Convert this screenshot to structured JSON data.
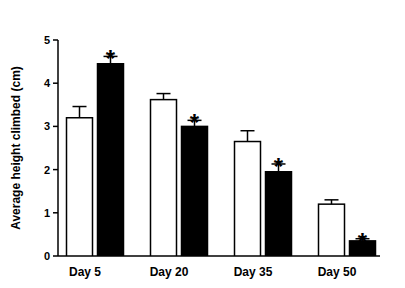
{
  "chart_data": {
    "type": "bar",
    "y_label": "Average height climbed (cm)",
    "categories": [
      "Day 5",
      "Day 20",
      "Day 35",
      "Day 50"
    ],
    "series": [
      {
        "color": "#ffffff",
        "values": [
          3.2,
          3.62,
          2.65,
          1.2
        ],
        "errors": [
          0.26,
          0.14,
          0.25,
          0.1
        ]
      },
      {
        "color": "#000000",
        "values": [
          4.45,
          3.0,
          1.95,
          0.35
        ],
        "errors": [
          0.17,
          0.14,
          0.18,
          0.05
        ],
        "annotations": [
          "*",
          "*",
          "*",
          "*"
        ]
      }
    ],
    "ylim": [
      0,
      5
    ],
    "yticks": [
      0,
      1,
      2,
      3,
      4,
      5
    ],
    "grid": false
  }
}
